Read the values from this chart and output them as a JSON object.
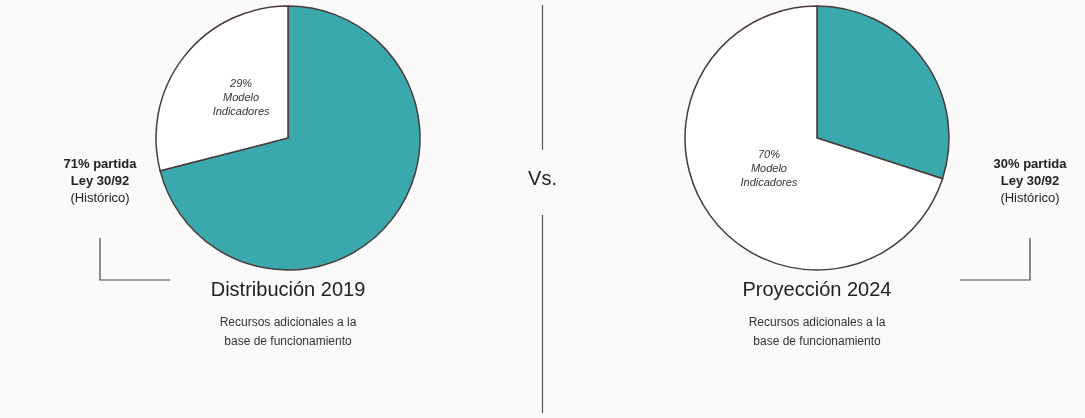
{
  "chart_data": [
    {
      "type": "pie",
      "title": "Distribución 2019",
      "subtitle": "Recursos adicionales a la base de funcionamiento",
      "categories": [
        "partida\nLey 30/92\n(Histórico)",
        "Modelo\nIndicadores"
      ],
      "values": [
        71,
        29
      ],
      "value_labels": [
        "71%",
        "29%"
      ],
      "colors": [
        "#3aa9ad",
        "#ffffff"
      ],
      "annotations": [
        "Vs."
      ]
    },
    {
      "type": "pie",
      "title": "Proyección 2024",
      "subtitle": "Recursos adicionales a la base de funcionamiento",
      "categories": [
        "partida\nLey 30/92\n(Histórico)",
        "Modelo\nIndicadores"
      ],
      "values": [
        30,
        70
      ],
      "value_labels": [
        "30%",
        "70%"
      ],
      "colors": [
        "#3aa9ad",
        "#ffffff"
      ]
    }
  ]
}
